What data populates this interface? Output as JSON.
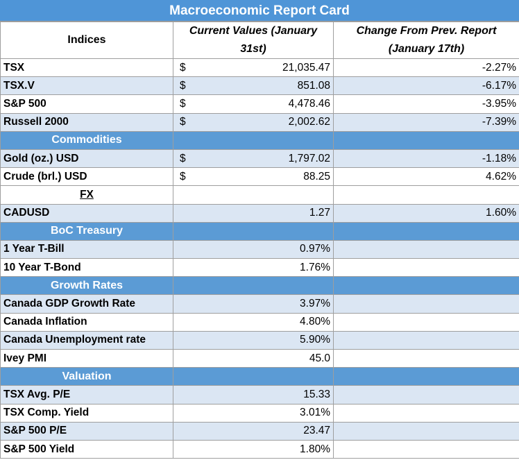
{
  "title": "Macroeconomic Report Card",
  "headers": {
    "indices": "Indices",
    "current": "Current Values (January 31st)",
    "change": "Change From Prev. Report (January 17th)"
  },
  "rows": [
    {
      "type": "data",
      "label": "TSX",
      "currency": "$",
      "value": "21,035.47",
      "change": "-2.27%"
    },
    {
      "type": "data",
      "label": "TSX.V",
      "currency": "$",
      "value": "851.08",
      "change": "-6.17%"
    },
    {
      "type": "data",
      "label": "S&P 500",
      "currency": "$",
      "value": "4,478.46",
      "change": "-3.95%"
    },
    {
      "type": "data",
      "label": "Russell 2000",
      "currency": "$",
      "value": "2,002.62",
      "change": "-7.39%"
    },
    {
      "type": "section",
      "label": "Commodities"
    },
    {
      "type": "data",
      "label": "Gold (oz.) USD",
      "currency": "$",
      "value": "1,797.02",
      "change": "-1.18%"
    },
    {
      "type": "data",
      "label": "Crude (brl.) USD",
      "currency": "$",
      "value": "88.25",
      "change": "4.62%"
    },
    {
      "type": "subheader",
      "label": "FX"
    },
    {
      "type": "data",
      "label": "CADUSD",
      "currency": "",
      "value": "1.27",
      "change": "1.60%"
    },
    {
      "type": "section",
      "label": "BoC Treasury"
    },
    {
      "type": "data",
      "label": "1 Year T-Bill",
      "currency": "",
      "value": "0.97%",
      "change": ""
    },
    {
      "type": "data",
      "label": "10 Year T-Bond",
      "currency": "",
      "value": "1.76%",
      "change": ""
    },
    {
      "type": "section",
      "label": "Growth Rates"
    },
    {
      "type": "data",
      "label": "Canada GDP Growth Rate",
      "currency": "",
      "value": "3.97%",
      "change": ""
    },
    {
      "type": "data",
      "label": "Canada Inflation",
      "currency": "",
      "value": "4.80%",
      "change": ""
    },
    {
      "type": "data",
      "label": "Canada Unemployment rate",
      "currency": "",
      "value": "5.90%",
      "change": ""
    },
    {
      "type": "data",
      "label": "Ivey PMI",
      "currency": "",
      "value": "45.0",
      "change": ""
    },
    {
      "type": "section",
      "label": "Valuation"
    },
    {
      "type": "data",
      "label": "TSX Avg. P/E",
      "currency": "",
      "value": "15.33",
      "change": ""
    },
    {
      "type": "data",
      "label": "TSX Comp. Yield",
      "currency": "",
      "value": "3.01%",
      "change": ""
    },
    {
      "type": "data",
      "label": "S&P 500 P/E",
      "currency": "",
      "value": "23.47",
      "change": ""
    },
    {
      "type": "data",
      "label": "S&P 500 Yield",
      "currency": "",
      "value": "1.80%",
      "change": ""
    }
  ],
  "colors": {
    "title_bg": "#4f95d7",
    "section_bg": "#5b9bd5",
    "stripe_bg": "#dbe6f3"
  }
}
